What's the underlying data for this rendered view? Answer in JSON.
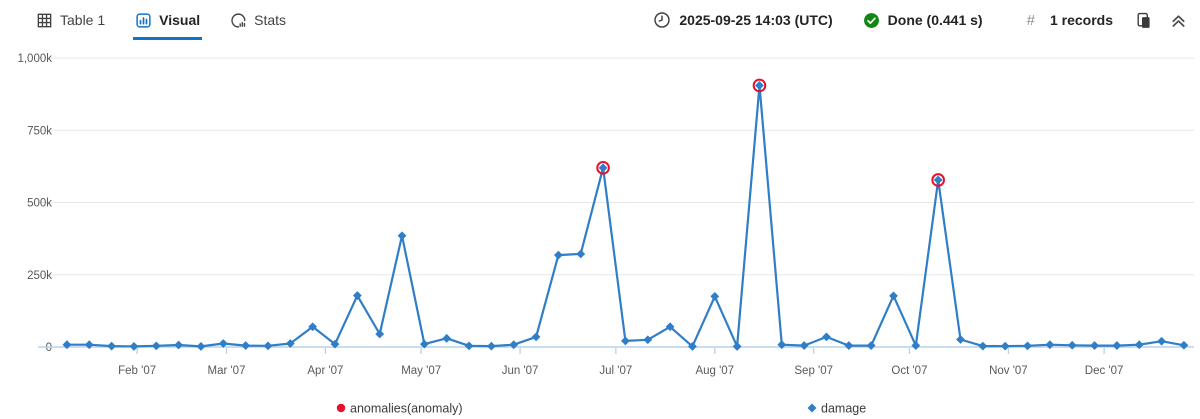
{
  "toolbar": {
    "tabs": [
      {
        "label": "Table 1",
        "icon": "table-grid-icon",
        "active": false
      },
      {
        "label": "Visual",
        "icon": "visual-chart-icon",
        "active": true
      },
      {
        "label": "Stats",
        "icon": "stats-pie-icon",
        "active": false
      }
    ],
    "timestamp": "2025-09-25 14:03 (UTC)",
    "status": "Done (0.441 s)",
    "hash_symbol": "#",
    "records": "1 records"
  },
  "colors": {
    "accent_blue": "#1373c2",
    "line_blue": "#2f7ec7",
    "anomaly_red": "#e8112d",
    "status_green": "#128712",
    "gridline": "#e8e8e8",
    "axis_line": "#b9d1ea",
    "tick_text": "#595959",
    "legend_text": "#3b3b3b"
  },
  "chart_data": {
    "type": "line",
    "title": "",
    "xlabel": "",
    "ylabel": "",
    "ylim": [
      0,
      1000000
    ],
    "xlim": [
      "2007-01-01",
      "2007-12-29"
    ],
    "grid": "horizontal",
    "legend_position": "bottom",
    "x": [
      "2007-01-10",
      "2007-01-17",
      "2007-01-24",
      "2007-01-31",
      "2007-02-07",
      "2007-02-14",
      "2007-02-21",
      "2007-02-28",
      "2007-03-07",
      "2007-03-14",
      "2007-03-21",
      "2007-03-28",
      "2007-04-04",
      "2007-04-11",
      "2007-04-18",
      "2007-04-25",
      "2007-05-02",
      "2007-05-09",
      "2007-05-16",
      "2007-05-23",
      "2007-05-30",
      "2007-06-06",
      "2007-06-13",
      "2007-06-20",
      "2007-06-27",
      "2007-07-04",
      "2007-07-11",
      "2007-07-18",
      "2007-07-25",
      "2007-08-01",
      "2007-08-08",
      "2007-08-15",
      "2007-08-22",
      "2007-08-29",
      "2007-09-05",
      "2007-09-12",
      "2007-09-19",
      "2007-09-26",
      "2007-10-03",
      "2007-10-10",
      "2007-10-17",
      "2007-10-24",
      "2007-10-31",
      "2007-11-07",
      "2007-11-14",
      "2007-11-21",
      "2007-11-28",
      "2007-12-05",
      "2007-12-12",
      "2007-12-19",
      "2007-12-26"
    ],
    "series": [
      {
        "name": "damage",
        "values": [
          8000,
          8000,
          3000,
          2000,
          4000,
          7000,
          2000,
          12000,
          5000,
          4000,
          12000,
          70000,
          10000,
          178000,
          45000,
          385000,
          10000,
          30000,
          4000,
          3000,
          8000,
          35000,
          318000,
          322000,
          620000,
          21000,
          25000,
          70000,
          2000,
          175000,
          2000,
          905000,
          8000,
          5000,
          35000,
          5000,
          5000,
          177000,
          5000,
          578000,
          26000,
          3000,
          3000,
          4000,
          8000,
          6000,
          5000,
          5000,
          8000,
          20000,
          6000
        ]
      }
    ],
    "anomalies": [
      {
        "x": "2007-06-27",
        "y": 620000
      },
      {
        "x": "2007-08-15",
        "y": 905000
      },
      {
        "x": "2007-10-10",
        "y": 578000
      }
    ],
    "yticks": [
      {
        "v": 0,
        "label": "0"
      },
      {
        "v": 250000,
        "label": "250k"
      },
      {
        "v": 500000,
        "label": "500k"
      },
      {
        "v": 750000,
        "label": "750k"
      },
      {
        "v": 1000000,
        "label": "1,000k"
      }
    ],
    "xticks": [
      {
        "date": "2007-02-01",
        "label": "Feb '07"
      },
      {
        "date": "2007-03-01",
        "label": "Mar '07"
      },
      {
        "date": "2007-04-01",
        "label": "Apr '07"
      },
      {
        "date": "2007-05-01",
        "label": "May '07"
      },
      {
        "date": "2007-06-01",
        "label": "Jun '07"
      },
      {
        "date": "2007-07-01",
        "label": "Jul '07"
      },
      {
        "date": "2007-08-01",
        "label": "Aug '07"
      },
      {
        "date": "2007-09-01",
        "label": "Sep '07"
      },
      {
        "date": "2007-10-01",
        "label": "Oct '07"
      },
      {
        "date": "2007-11-01",
        "label": "Nov '07"
      },
      {
        "date": "2007-12-01",
        "label": "Dec '07"
      }
    ],
    "legend": [
      {
        "label": "anomalies(anomaly)",
        "marker": "circle",
        "color": "#e8112d"
      },
      {
        "label": "damage",
        "marker": "diamond",
        "color": "#2f7ec7"
      }
    ]
  }
}
